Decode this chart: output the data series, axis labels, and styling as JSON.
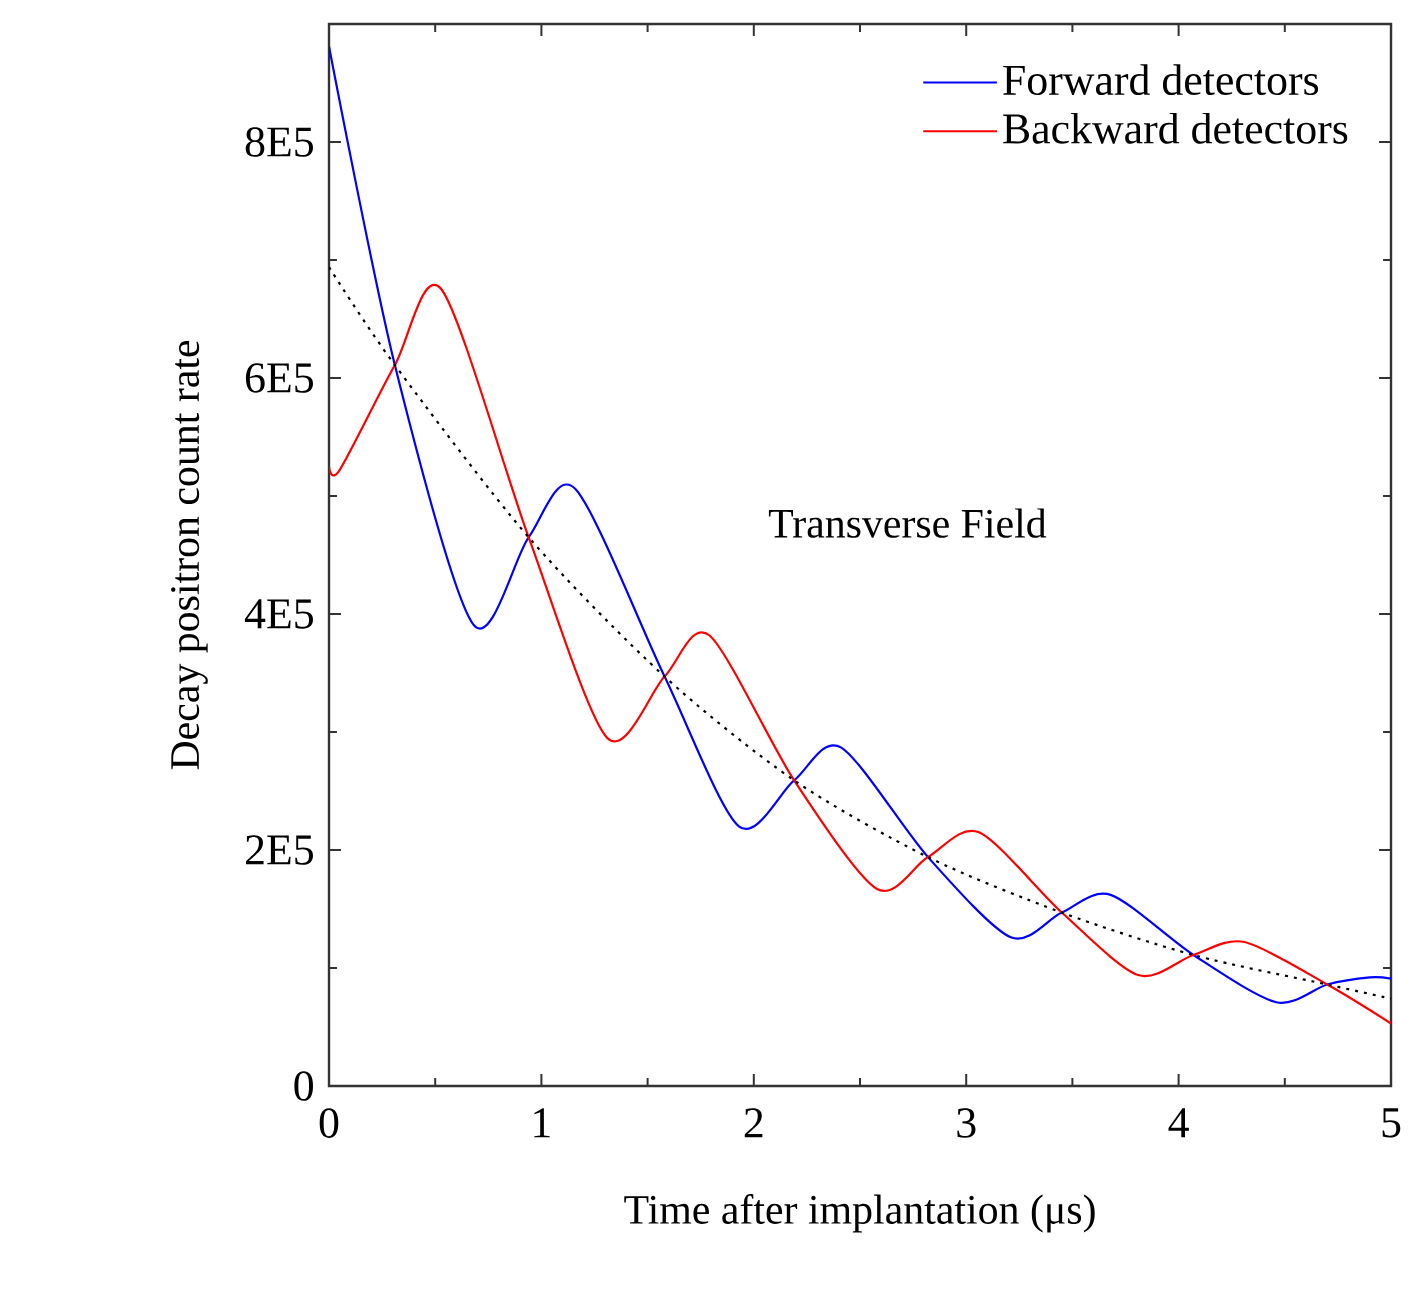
{
  "chart_data": {
    "type": "line",
    "xlabel": "Time after implantation (μs)",
    "ylabel": "Decay positron count rate",
    "xlim": [
      0,
      5
    ],
    "xticks": [
      0,
      1,
      2,
      3,
      4,
      5
    ],
    "ylim": [
      0,
      900000
    ],
    "yticks": [
      0,
      {
        "value": 200000,
        "label": "2E5"
      },
      {
        "value": 400000,
        "label": "4E5"
      },
      {
        "value": 600000,
        "label": "6E5"
      },
      {
        "value": 800000,
        "label": "8E5"
      }
    ],
    "grid": false,
    "legend": "top right",
    "marker": "none",
    "line_style": "solid",
    "annotations": [
      "Transverse Field"
    ],
    "series": [
      {
        "name": "Forward detectors",
        "color": "#0000ff",
        "x": [
          0,
          0.31,
          0.68,
          0.94,
          1.16,
          1.58,
          1.93,
          2.19,
          2.41,
          2.82,
          3.21,
          3.45,
          3.68,
          4.07,
          4.46,
          4.7,
          4.9,
          5
        ],
        "values": [
          881000,
          611000,
          391000,
          465000,
          506000,
          347000,
          220000,
          259000,
          287000,
          194000,
          126000,
          147000,
          162000,
          111000,
          71000,
          86000,
          92000,
          91000
        ]
      },
      {
        "name": "Backward detectors",
        "color": "#ff0000",
        "x": [
          0,
          0.05,
          0.31,
          0.53,
          0.94,
          1.31,
          1.58,
          1.79,
          2.19,
          2.58,
          2.82,
          3.06,
          3.45,
          3.81,
          4.07,
          4.31,
          4.7,
          5
        ],
        "values": [
          525000,
          522000,
          611000,
          675000,
          465000,
          295000,
          347000,
          382000,
          259000,
          167000,
          194000,
          215000,
          147000,
          94000,
          111000,
          122000,
          86000,
          53000
        ]
      },
      {
        "color": "#000000",
        "line_style": "dotted",
        "x": [
          0,
          0.31,
          0.94,
          1.58,
          2.19,
          2.82,
          3.45,
          4.07,
          4.7,
          5
        ],
        "values": [
          694000,
          611000,
          465000,
          347000,
          259000,
          194000,
          147000,
          111000,
          86000,
          74000
        ]
      }
    ]
  }
}
